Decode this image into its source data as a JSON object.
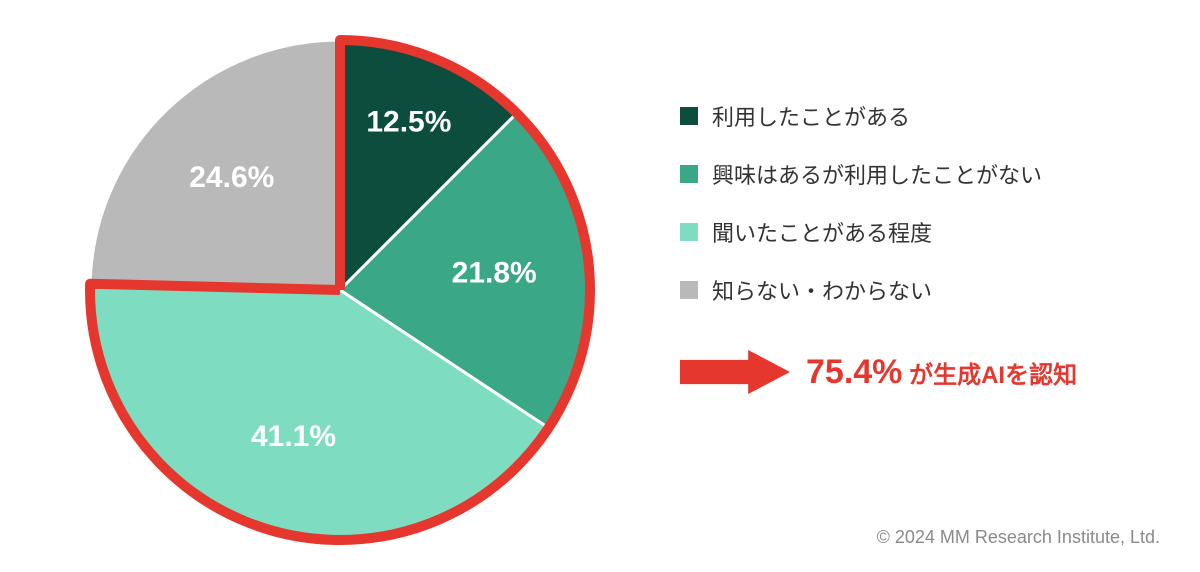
{
  "chart": {
    "type": "pie",
    "background_color": "#ffffff",
    "slice_gap_color": "#ffffff",
    "slice_gap_width": 3,
    "radius": 250,
    "label_fontsize": 30,
    "label_color": "#ffffff",
    "highlight": {
      "slice_indices": [
        0,
        1,
        2
      ],
      "stroke_color": "#e6372e",
      "stroke_width": 10
    },
    "slices": [
      {
        "label": "12.5%",
        "value": 12.5,
        "color": "#0d4d3d",
        "legend": "利用したことがある"
      },
      {
        "label": "21.8%",
        "value": 21.8,
        "color": "#3aa787",
        "legend": "興味はあるが利用したことがない"
      },
      {
        "label": "41.1%",
        "value": 41.1,
        "color": "#7edcc0",
        "legend": "聞いたことがある程度"
      },
      {
        "label": "24.6%",
        "value": 24.6,
        "color": "#b9b9b9",
        "legend": "知らない・わからない"
      }
    ]
  },
  "legend": {
    "swatch_size": 18,
    "fontsize": 22,
    "text_color": "#333333"
  },
  "callout": {
    "arrow_color": "#e6372e",
    "arrow_width": 110,
    "arrow_height": 44,
    "big_text": "75.4%",
    "big_fontsize": 34,
    "big_color": "#e6372e",
    "rest_text": " が生成AIを認知",
    "rest_fontsize": 24,
    "rest_color": "#e6372e"
  },
  "copyright": "© 2024 MM Research Institute, Ltd."
}
